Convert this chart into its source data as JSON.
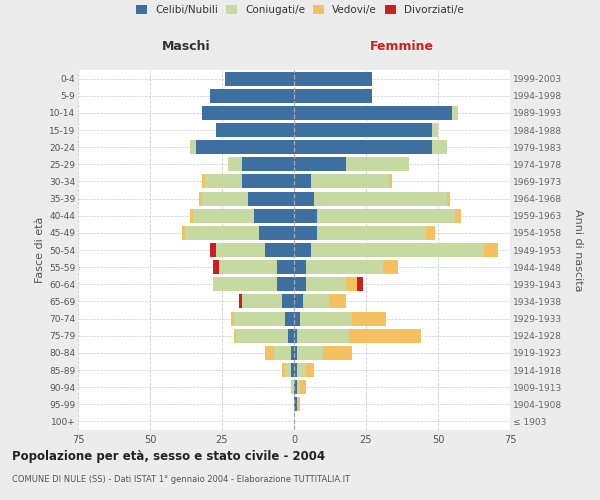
{
  "age_groups": [
    "100+",
    "95-99",
    "90-94",
    "85-89",
    "80-84",
    "75-79",
    "70-74",
    "65-69",
    "60-64",
    "55-59",
    "50-54",
    "45-49",
    "40-44",
    "35-39",
    "30-34",
    "25-29",
    "20-24",
    "15-19",
    "10-14",
    "5-9",
    "0-4"
  ],
  "birth_years": [
    "≤ 1903",
    "1904-1908",
    "1909-1913",
    "1914-1918",
    "1919-1923",
    "1924-1928",
    "1929-1933",
    "1934-1938",
    "1939-1943",
    "1944-1948",
    "1949-1953",
    "1954-1958",
    "1959-1963",
    "1964-1968",
    "1969-1973",
    "1974-1978",
    "1979-1983",
    "1984-1988",
    "1989-1993",
    "1994-1998",
    "1999-2003"
  ],
  "males": {
    "celibi": [
      0,
      0,
      0,
      1,
      1,
      2,
      3,
      4,
      6,
      6,
      10,
      12,
      14,
      16,
      18,
      18,
      34,
      27,
      32,
      29,
      24
    ],
    "coniugati": [
      0,
      0,
      1,
      2,
      6,
      18,
      18,
      14,
      22,
      20,
      17,
      26,
      21,
      16,
      13,
      5,
      2,
      0,
      0,
      0,
      0
    ],
    "vedovi": [
      0,
      0,
      0,
      1,
      3,
      1,
      1,
      0,
      0,
      0,
      0,
      1,
      1,
      1,
      1,
      0,
      0,
      0,
      0,
      0,
      0
    ],
    "divorziati": [
      0,
      0,
      0,
      0,
      0,
      0,
      0,
      1,
      0,
      2,
      2,
      0,
      0,
      0,
      0,
      0,
      0,
      0,
      0,
      0,
      0
    ]
  },
  "females": {
    "nubili": [
      0,
      1,
      1,
      1,
      1,
      1,
      2,
      3,
      4,
      4,
      6,
      8,
      8,
      7,
      6,
      18,
      48,
      48,
      55,
      27,
      27
    ],
    "coniugate": [
      0,
      0,
      1,
      3,
      9,
      18,
      18,
      9,
      14,
      27,
      60,
      38,
      48,
      46,
      27,
      22,
      5,
      2,
      2,
      0,
      0
    ],
    "vedove": [
      0,
      1,
      2,
      3,
      10,
      25,
      12,
      6,
      4,
      5,
      5,
      3,
      2,
      1,
      1,
      0,
      0,
      0,
      0,
      0,
      0
    ],
    "divorziate": [
      0,
      0,
      0,
      0,
      0,
      0,
      0,
      0,
      2,
      0,
      0,
      0,
      0,
      0,
      0,
      0,
      0,
      0,
      0,
      0,
      0
    ]
  },
  "colors": {
    "celibi": "#3d6fa0",
    "coniugati": "#c5d9a0",
    "vedovi": "#f5c060",
    "divorziati": "#cc2020"
  },
  "xlim": 75,
  "title": "Popolazione per età, sesso e stato civile - 2004",
  "subtitle": "COMUNE DI NULE (SS) - Dati ISTAT 1° gennaio 2004 - Elaborazione TUTTITALIA.IT",
  "ylabel_left": "Fasce di età",
  "ylabel_right": "Anni di nascita",
  "xlabel_left": "Maschi",
  "xlabel_right": "Femmine",
  "legend_labels": [
    "Celibi/Nubili",
    "Coniugati/e",
    "Vedovi/e",
    "Divorziati/e"
  ],
  "bg_color": "#ececec",
  "plot_bg_color": "#ffffff"
}
